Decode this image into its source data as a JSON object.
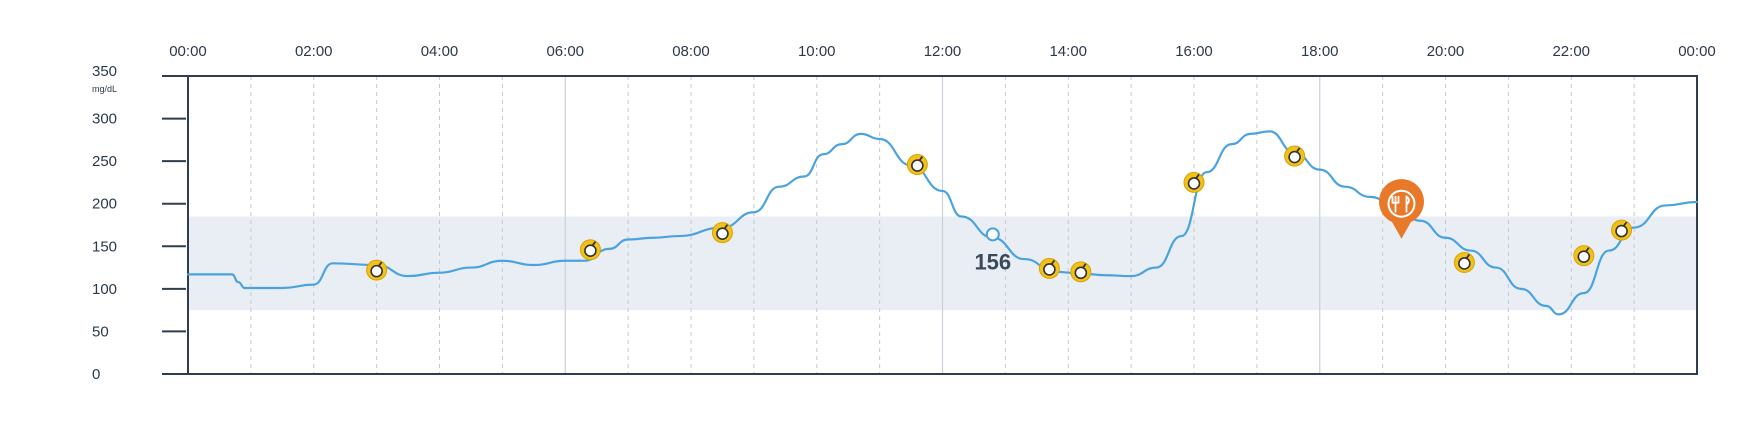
{
  "chart_data": {
    "type": "line",
    "title": "",
    "xlabel": "",
    "ylabel": "mg/dL",
    "x_unit": "hours",
    "xlim": [
      0,
      24
    ],
    "ylim": [
      0,
      350
    ],
    "x_tick_labels": [
      "00:00",
      "02:00",
      "04:00",
      "06:00",
      "08:00",
      "10:00",
      "12:00",
      "14:00",
      "16:00",
      "18:00",
      "20:00",
      "22:00",
      "00:00"
    ],
    "y_ticks": [
      0,
      50,
      100,
      150,
      200,
      250,
      300,
      350
    ],
    "y_unit_label": "mg/dL",
    "target_range": [
      75,
      185
    ],
    "series": [
      {
        "color": "#4aa3df",
        "x": [
          0,
          0.7,
          0.8,
          0.9,
          1.5,
          2,
          2.3,
          3,
          3.5,
          4,
          4.5,
          5,
          5.5,
          6,
          6.3,
          6.7,
          7,
          7.4,
          7.8,
          8.5,
          9,
          9.4,
          9.8,
          10.1,
          10.4,
          10.7,
          11,
          11.5,
          12,
          12.3,
          12.8,
          13.3,
          13.8,
          14.2,
          14.6,
          15,
          15.4,
          15.8,
          16.2,
          16.6,
          16.9,
          17.2,
          17.6,
          18,
          18.4,
          18.8,
          19.2,
          19.6,
          20,
          20.4,
          20.8,
          21.2,
          21.6,
          21.8,
          22.2,
          22.6,
          23,
          23.5,
          24
        ],
        "y": [
          117,
          117,
          108,
          101,
          101,
          105,
          130,
          128,
          115,
          119,
          125,
          133,
          128,
          133,
          133,
          147,
          158,
          160,
          162,
          172,
          190,
          220,
          232,
          258,
          270,
          282,
          276,
          245,
          215,
          185,
          160,
          135,
          120,
          118,
          116,
          115,
          125,
          162,
          237,
          270,
          282,
          285,
          260,
          240,
          220,
          208,
          198,
          180,
          160,
          145,
          125,
          100,
          80,
          70,
          95,
          145,
          172,
          198,
          202
        ]
      }
    ],
    "annotations": [
      {
        "label": "156",
        "x": 12.8,
        "y": 164
      }
    ],
    "markers": [
      {
        "type": "insulin",
        "icon": "insulin-dose-icon",
        "x": 3.0,
        "y": 122
      },
      {
        "type": "insulin",
        "icon": "insulin-dose-icon",
        "x": 6.4,
        "y": 146
      },
      {
        "type": "insulin",
        "icon": "insulin-dose-icon",
        "x": 8.5,
        "y": 166
      },
      {
        "type": "insulin",
        "icon": "insulin-dose-icon",
        "x": 11.6,
        "y": 246
      },
      {
        "type": "insulin",
        "icon": "insulin-dose-icon",
        "x": 13.7,
        "y": 124
      },
      {
        "type": "insulin",
        "icon": "insulin-dose-icon",
        "x": 14.2,
        "y": 120
      },
      {
        "type": "insulin",
        "icon": "insulin-dose-icon",
        "x": 16.0,
        "y": 225
      },
      {
        "type": "insulin",
        "icon": "insulin-dose-icon",
        "x": 17.6,
        "y": 256
      },
      {
        "type": "insulin",
        "icon": "insulin-dose-icon",
        "x": 20.3,
        "y": 131
      },
      {
        "type": "insulin",
        "icon": "insulin-dose-icon",
        "x": 22.2,
        "y": 139
      },
      {
        "type": "insulin",
        "icon": "insulin-dose-icon",
        "x": 22.8,
        "y": 169
      },
      {
        "type": "meal",
        "icon": "meal-fork-knife-icon",
        "x": 19.3,
        "y": 200
      }
    ],
    "colors": {
      "line": "#4aa3df",
      "target_band": "#e9eef5",
      "axis": "#2f3e4e",
      "insulin_fill": "#f2c21b",
      "meal": "#e8782a"
    },
    "grid": {
      "major_hours": 6,
      "minor_hours": 1,
      "style": "dashed minor, solid major"
    }
  }
}
